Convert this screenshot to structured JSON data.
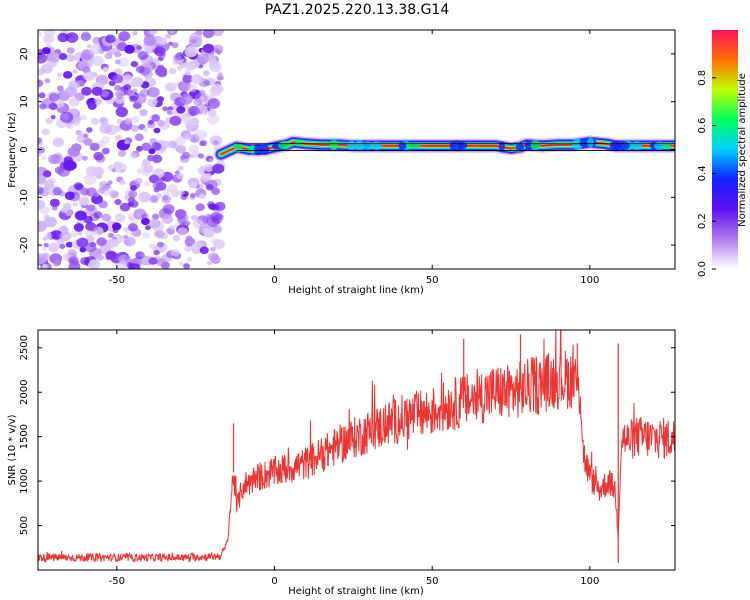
{
  "figure": {
    "title": "PAZ1.2025.220.13.38.G14"
  },
  "chart_data": [
    {
      "type": "heatmap",
      "xlabel": "Height of straight line (km)",
      "ylabel": "Frequency (Hz)",
      "xlim": [
        -75,
        127
      ],
      "ylim": [
        -25,
        25
      ],
      "x_ticks": [
        -50,
        0,
        50,
        100
      ],
      "y_ticks": [
        -20,
        -10,
        0,
        10,
        20
      ],
      "colorbar": {
        "label": "Normalized spectral amplitude",
        "range": [
          0,
          1
        ],
        "ticks": [
          "0.0",
          "0.2",
          "0.4",
          "0.6",
          "0.8"
        ],
        "colors": [
          "#ffffff",
          "#b07cf0",
          "#6010f0",
          "#1020ff",
          "#00d0ff",
          "#00ff60",
          "#c0ff00",
          "#ff7000",
          "#ff1060"
        ]
      },
      "noise_region_x": [
        -75,
        -17
      ],
      "signal_track": {
        "x": [
          -17,
          -12,
          -8,
          -3,
          0,
          4,
          6,
          10,
          15,
          20,
          25,
          30,
          40,
          50,
          60,
          70,
          75,
          78,
          80,
          85,
          90,
          95,
          100,
          105,
          108,
          110,
          115,
          120,
          127
        ],
        "y": [
          -1.0,
          0.5,
          0.0,
          0.0,
          0.5,
          1.0,
          1.5,
          1.2,
          1.0,
          1.0,
          0.8,
          0.8,
          0.8,
          0.8,
          0.8,
          0.8,
          0.2,
          0.5,
          1.0,
          0.8,
          1.0,
          1.0,
          1.5,
          1.2,
          0.8,
          0.8,
          0.8,
          0.8,
          0.8
        ]
      },
      "reference_lines_y": [
        1.2,
        -0.2
      ]
    },
    {
      "type": "line",
      "xlabel": "Height of straight line (km)",
      "ylabel": "SNR (10 * v/v)",
      "xlim": [
        -75,
        127
      ],
      "ylim": [
        0,
        2700
      ],
      "x_ticks": [
        -50,
        0,
        50,
        100
      ],
      "y_ticks": [
        500,
        1000,
        1500,
        2000,
        2500
      ],
      "series": [
        {
          "color": "#ee3333",
          "x": [
            -75,
            -60,
            -45,
            -30,
            -20,
            -17,
            -15,
            -14,
            -13,
            -12,
            -10,
            -5,
            0,
            5,
            10,
            15,
            20,
            30,
            40,
            50,
            55,
            60,
            65,
            70,
            75,
            80,
            85,
            90,
            95,
            97,
            98,
            100,
            103,
            106,
            108,
            109,
            110,
            112,
            115,
            120,
            127
          ],
          "y": [
            140,
            140,
            140,
            140,
            150,
            160,
            300,
            700,
            1100,
            700,
            950,
            1050,
            1100,
            1150,
            1200,
            1300,
            1400,
            1560,
            1700,
            1780,
            1850,
            1900,
            1950,
            2000,
            2000,
            2050,
            2100,
            2150,
            2150,
            2000,
            1300,
            1050,
            900,
            1000,
            900,
            400,
            1500,
            1450,
            1500,
            1480,
            1480
          ]
        }
      ],
      "spikes": [
        {
          "x": -13,
          "y": 1650
        },
        {
          "x": 60,
          "y": 2600
        },
        {
          "x": 78,
          "y": 2650
        },
        {
          "x": 83,
          "y": 2400
        },
        {
          "x": 96,
          "y": 2550
        },
        {
          "x": 109,
          "y": 2550
        },
        {
          "x": 109,
          "y": 80
        }
      ]
    }
  ]
}
